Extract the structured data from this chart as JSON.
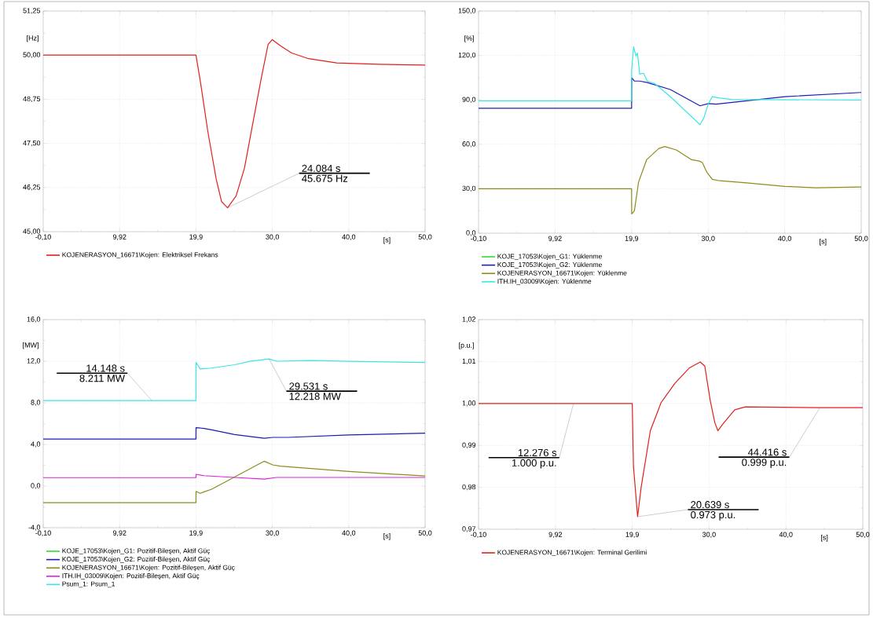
{
  "chart_data": [
    {
      "type": "line",
      "xlabel": "[s]",
      "ylabel": "[Hz]",
      "xlim": [
        -0.1,
        50.0
      ],
      "ylim": [
        45.0,
        51.25
      ],
      "xticks": [
        {
          "value": -0.1,
          "label": "-0,10"
        },
        {
          "value": 9.92,
          "label": "9,92"
        },
        {
          "value": 19.94,
          "label": "19,9"
        },
        {
          "value": 29.96,
          "label": "30,0"
        },
        {
          "value": 39.98,
          "label": "40,0"
        },
        {
          "value": 50.0,
          "label": "50,0"
        }
      ],
      "yticks": [
        {
          "value": 45.0,
          "label": "45,00"
        },
        {
          "value": 46.25,
          "label": "46,25"
        },
        {
          "value": 47.5,
          "label": "47,50"
        },
        {
          "value": 48.75,
          "label": "48,75"
        },
        {
          "value": 50.0,
          "label": "50,00"
        },
        {
          "value": 51.25,
          "label": "51,25"
        }
      ],
      "grid": true,
      "legend": "bottom",
      "series": [
        {
          "name": "KOJENERASYON_16671\\Kojen: Elektriksel Frekans",
          "color": "#e0201b",
          "x": [
            -0.1,
            19.94,
            20.57,
            21.5,
            22.6,
            23.3,
            24.084,
            25.2,
            26.3,
            27.4,
            28.5,
            29.4,
            29.95,
            31.05,
            32.5,
            34.7,
            38.4,
            43.9,
            50.0
          ],
          "values": [
            50.0,
            50.0,
            49.18,
            47.83,
            46.48,
            45.85,
            45.675,
            46.01,
            46.8,
            48.07,
            49.34,
            50.3,
            50.44,
            50.26,
            50.06,
            49.9,
            49.78,
            49.74,
            49.72
          ]
        }
      ],
      "annotations": [
        {
          "text": "24.084 s",
          "x": 24.084,
          "y": 45.675
        },
        {
          "text": "45.675 Hz",
          "x": 24.084,
          "y": 45.675
        }
      ]
    },
    {
      "type": "line",
      "xlabel": "[s]",
      "ylabel": "[%]",
      "xlim": [
        -0.1,
        50.0
      ],
      "ylim": [
        0.0,
        150.0
      ],
      "xticks": [
        {
          "value": -0.1,
          "label": "-0,10"
        },
        {
          "value": 9.92,
          "label": "9,92"
        },
        {
          "value": 19.94,
          "label": "19,9"
        },
        {
          "value": 29.96,
          "label": "30,0"
        },
        {
          "value": 39.98,
          "label": "40,0"
        },
        {
          "value": 50.0,
          "label": "50,0"
        }
      ],
      "yticks": [
        {
          "value": 0,
          "label": "0,0"
        },
        {
          "value": 30,
          "label": "30,0"
        },
        {
          "value": 60,
          "label": "60,0"
        },
        {
          "value": 90,
          "label": "90,0"
        },
        {
          "value": 120,
          "label": "120,0"
        },
        {
          "value": 150,
          "label": "150,0"
        }
      ],
      "grid": true,
      "legend": "bottom",
      "series": [
        {
          "name": "KOJE_17053\\Kojen_G1: Yüklenme",
          "color": "#2edc2e"
        },
        {
          "name": "KOJE_17053\\Kojen_G2: Yüklenme",
          "color": "#1c1cb4",
          "x": [
            -0.1,
            19.94,
            19.95,
            20.3,
            21.0,
            22.0,
            25.0,
            28.9,
            30.0,
            31.0,
            35.0,
            40.0,
            50.0
          ],
          "values": [
            84.3,
            84.3,
            104.9,
            102.7,
            102.7,
            101.7,
            97.0,
            86.0,
            87.5,
            87.1,
            89.4,
            92.2,
            95.0
          ]
        },
        {
          "name": "KOJENERASYON_16671\\Kojen: Yüklenme",
          "color": "#8c8c1a",
          "x": [
            -0.1,
            19.94,
            19.95,
            20.3,
            20.85,
            21.9,
            23.5,
            24.3,
            25.8,
            27.8,
            28.8,
            29.2,
            29.8,
            30.5,
            31.5,
            35.0,
            40.0,
            44.0,
            50.0
          ],
          "values": [
            30.0,
            30.0,
            13.1,
            15.0,
            34.5,
            49.6,
            57.2,
            58.5,
            56.2,
            49.6,
            48.7,
            47.7,
            41.1,
            36.4,
            35.4,
            34.0,
            31.6,
            30.7,
            31.2
          ]
        },
        {
          "name": "ITH.IH_03009\\Kojen: Yüklenme",
          "color": "#3ae6e6",
          "x": [
            -0.1,
            19.94,
            19.95,
            20.2,
            20.5,
            20.7,
            21.0,
            21.5,
            22.0,
            23.0,
            25.0,
            28.9,
            29.4,
            30.0,
            30.5,
            31.5,
            33.0,
            50.0
          ],
          "values": [
            89.4,
            89.4,
            110.0,
            125.8,
            119.7,
            121.6,
            107.4,
            108.0,
            102.7,
            100.8,
            92.2,
            73.3,
            78.0,
            87.5,
            92.2,
            91.2,
            90.3,
            89.9
          ]
        }
      ]
    },
    {
      "type": "line",
      "xlabel": "[s]",
      "ylabel": "[MW]",
      "xlim": [
        -0.1,
        50.0
      ],
      "ylim": [
        -4.0,
        16.0
      ],
      "xticks": [
        {
          "value": -0.1,
          "label": "-0,10"
        },
        {
          "value": 9.92,
          "label": "9,92"
        },
        {
          "value": 19.94,
          "label": "19,9"
        },
        {
          "value": 29.96,
          "label": "30,0"
        },
        {
          "value": 39.98,
          "label": "40,0"
        },
        {
          "value": 50.0,
          "label": "50,0"
        }
      ],
      "yticks": [
        {
          "value": -4,
          "label": "-4,0"
        },
        {
          "value": 0,
          "label": "0,0"
        },
        {
          "value": 4,
          "label": "4,0"
        },
        {
          "value": 8,
          "label": "8,0"
        },
        {
          "value": 12,
          "label": "12,0"
        },
        {
          "value": 16,
          "label": "16,0"
        }
      ],
      "grid": true,
      "legend": "bottom",
      "series": [
        {
          "name": "KOJE_17053\\Kojen_G1: Pozitif-Bileşen, Aktif Güç",
          "color": "#2edc2e"
        },
        {
          "name": "KOJE_17053\\Kojen_G2: Pozitif-Bileşen, Aktif Güç",
          "color": "#1c1cb4",
          "x": [
            -0.1,
            19.94,
            19.95,
            21.0,
            22.0,
            25.0,
            28.9,
            30.0,
            32.0,
            40.0,
            50.0
          ],
          "values": [
            4.52,
            4.52,
            5.62,
            5.54,
            5.4,
            4.95,
            4.6,
            4.68,
            4.68,
            4.92,
            5.08
          ]
        },
        {
          "name": "KOJENERASYON_16671\\Kojen: Pozitif-Bileşen, Aktif Güç",
          "color": "#8c8c1a",
          "x": [
            -0.1,
            19.94,
            19.95,
            20.5,
            21.0,
            22.0,
            28.9,
            30.0,
            31.0,
            40.0,
            50.0
          ],
          "values": [
            -1.59,
            -1.59,
            -0.51,
            -0.7,
            -0.56,
            -0.3,
            2.39,
            2.04,
            1.91,
            1.4,
            0.97
          ]
        },
        {
          "name": "ITH.IH_03009\\Kojen: Pozitif-Bileşen, Aktif Güç",
          "color": "#e01ee0",
          "x": [
            -0.1,
            19.94,
            19.95,
            21.0,
            25.0,
            28.9,
            30.5,
            50.0
          ],
          "values": [
            0.81,
            0.81,
            1.13,
            1.0,
            0.83,
            0.67,
            0.83,
            0.83
          ]
        },
        {
          "name": "Psum_1: Psum_1",
          "color": "#3ae6e6",
          "x": [
            -0.1,
            14.148,
            19.94,
            19.95,
            20.5,
            22.0,
            25.0,
            27.0,
            29.531,
            30.5,
            35.0,
            40.0,
            50.0
          ],
          "values": [
            8.211,
            8.211,
            8.211,
            11.88,
            11.26,
            11.34,
            11.66,
            11.99,
            12.218,
            12.0,
            12.06,
            11.99,
            11.88
          ]
        }
      ],
      "annotations": [
        {
          "text": "14.148 s",
          "x": 14.148,
          "y": 8.211
        },
        {
          "text": "8.211 MW",
          "x": 14.148,
          "y": 8.211
        },
        {
          "text": "29.531 s",
          "x": 29.531,
          "y": 12.218
        },
        {
          "text": "12.218 MW",
          "x": 29.531,
          "y": 12.218
        }
      ]
    },
    {
      "type": "line",
      "xlabel": "[s]",
      "ylabel": "[p.u.]",
      "xlim": [
        -0.1,
        50.0
      ],
      "ylim": [
        0.97,
        1.02
      ],
      "xticks": [
        {
          "value": -0.1,
          "label": "-0,10"
        },
        {
          "value": 9.92,
          "label": "9,92"
        },
        {
          "value": 19.94,
          "label": "19,9"
        },
        {
          "value": 29.96,
          "label": "30,0"
        },
        {
          "value": 39.98,
          "label": "40,0"
        },
        {
          "value": 50.0,
          "label": "50,0"
        }
      ],
      "yticks": [
        {
          "value": 0.97,
          "label": "0,97"
        },
        {
          "value": 0.98,
          "label": "0,98"
        },
        {
          "value": 0.99,
          "label": "0,99"
        },
        {
          "value": 1.0,
          "label": "1,00"
        },
        {
          "value": 1.01,
          "label": "1,01"
        },
        {
          "value": 1.02,
          "label": "1,02"
        }
      ],
      "grid": true,
      "legend": "bottom",
      "series": [
        {
          "name": "KOJENERASYON_16671\\Kojen: Terminal Gerilimi",
          "color": "#e0201b",
          "x": [
            -0.1,
            12.276,
            19.94,
            20.1,
            20.639,
            21.1,
            22.3,
            23.7,
            25.5,
            27.4,
            28.8,
            29.4,
            30.1,
            30.7,
            31.1,
            31.8,
            33.3,
            34.7,
            44.416,
            50.0
          ],
          "values": [
            1.0,
            1.0,
            1.0,
            0.985,
            0.973,
            0.98,
            0.9935,
            1.0002,
            1.0048,
            1.0085,
            1.0099,
            1.0089,
            1.0008,
            0.9955,
            0.9935,
            0.9952,
            0.9985,
            0.9992,
            0.999,
            0.999
          ]
        }
      ],
      "annotations": [
        {
          "text": "12.276 s",
          "x": 12.276,
          "y": 1.0
        },
        {
          "text": "1.000 p.u.",
          "x": 12.276,
          "y": 1.0
        },
        {
          "text": "20.639 s",
          "x": 20.639,
          "y": 0.973
        },
        {
          "text": "0.973 p.u.",
          "x": 20.639,
          "y": 0.973
        },
        {
          "text": "44.416 s",
          "x": 44.416,
          "y": 0.999
        },
        {
          "text": "0.999 p.u.",
          "x": 44.416,
          "y": 0.999
        }
      ]
    }
  ]
}
